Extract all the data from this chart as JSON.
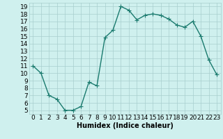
{
  "x": [
    0,
    1,
    2,
    3,
    4,
    5,
    6,
    7,
    8,
    9,
    10,
    11,
    12,
    13,
    14,
    15,
    16,
    17,
    18,
    19,
    20,
    21,
    22,
    23
  ],
  "y": [
    11,
    10,
    7,
    6.5,
    5,
    5,
    5.5,
    8.8,
    8.3,
    14.8,
    15.8,
    19.0,
    18.5,
    17.2,
    17.8,
    18.0,
    17.8,
    17.3,
    16.5,
    16.2,
    17.0,
    15.0,
    11.8,
    9.8
  ],
  "line_color": "#1a7a6e",
  "marker": "+",
  "marker_size": 4,
  "bg_color": "#cff0ee",
  "grid_color": "#a8cece",
  "xlabel": "Humidex (Indice chaleur)",
  "xlim": [
    -0.5,
    23.5
  ],
  "ylim": [
    4.5,
    19.5
  ],
  "xticks": [
    0,
    1,
    2,
    3,
    4,
    5,
    6,
    7,
    8,
    9,
    10,
    11,
    12,
    13,
    14,
    15,
    16,
    17,
    18,
    19,
    20,
    21,
    22,
    23
  ],
  "yticks": [
    5,
    6,
    7,
    8,
    9,
    10,
    11,
    12,
    13,
    14,
    15,
    16,
    17,
    18,
    19
  ],
  "xlabel_fontsize": 7,
  "tick_fontsize": 6.5,
  "linewidth": 1.0
}
